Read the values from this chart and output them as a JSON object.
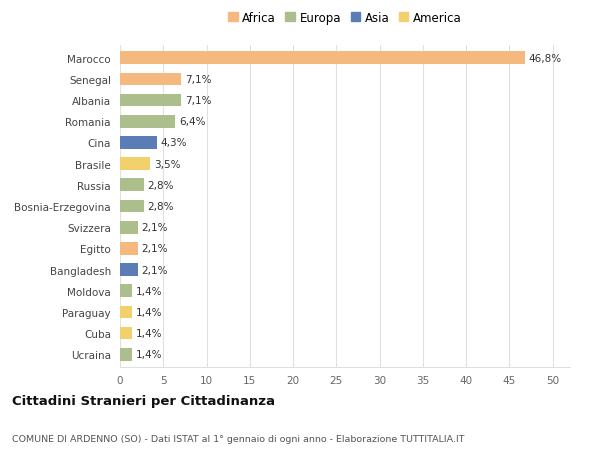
{
  "countries": [
    "Marocco",
    "Senegal",
    "Albania",
    "Romania",
    "Cina",
    "Brasile",
    "Russia",
    "Bosnia-Erzegovina",
    "Svizzera",
    "Egitto",
    "Bangladesh",
    "Moldova",
    "Paraguay",
    "Cuba",
    "Ucraina"
  ],
  "values": [
    46.8,
    7.1,
    7.1,
    6.4,
    4.3,
    3.5,
    2.8,
    2.8,
    2.1,
    2.1,
    2.1,
    1.4,
    1.4,
    1.4,
    1.4
  ],
  "labels": [
    "46,8%",
    "7,1%",
    "7,1%",
    "6,4%",
    "4,3%",
    "3,5%",
    "2,8%",
    "2,8%",
    "2,1%",
    "2,1%",
    "2,1%",
    "1,4%",
    "1,4%",
    "1,4%",
    "1,4%"
  ],
  "continents": [
    "Africa",
    "Africa",
    "Europa",
    "Europa",
    "Asia",
    "America",
    "Europa",
    "Europa",
    "Europa",
    "Africa",
    "Asia",
    "Europa",
    "America",
    "America",
    "Europa"
  ],
  "colors": {
    "Africa": "#F5B97F",
    "Europa": "#ABBE8C",
    "Asia": "#5B7DB5",
    "America": "#F2D06B"
  },
  "legend_order": [
    "Africa",
    "Europa",
    "Asia",
    "America"
  ],
  "title": "Cittadini Stranieri per Cittadinanza",
  "subtitle": "COMUNE DI ARDENNO (SO) - Dati ISTAT al 1° gennaio di ogni anno - Elaborazione TUTTITALIA.IT",
  "xlabel_vals": [
    0,
    5,
    10,
    15,
    20,
    25,
    30,
    35,
    40,
    45,
    50
  ],
  "xlim": [
    0,
    52
  ],
  "background_color": "#ffffff",
  "grid_color": "#e0e0e0",
  "bar_height": 0.6,
  "legend_marker_size": 10,
  "label_fontsize": 7.5,
  "ytick_fontsize": 7.5,
  "xtick_fontsize": 7.5,
  "title_fontsize": 9.5,
  "subtitle_fontsize": 6.8
}
